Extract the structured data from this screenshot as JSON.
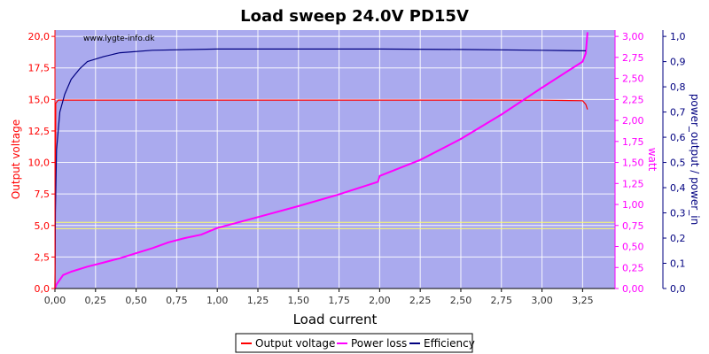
{
  "chart_data": {
    "type": "line",
    "title": "Load sweep 24.0V PD15V",
    "watermark": "www.lygte-info.dk",
    "xlabel": "Load current",
    "ylabel_left": "Output voltage",
    "ylabel_right1": "watt",
    "ylabel_right2": "power_output / power_in",
    "xlim": [
      0,
      3.45
    ],
    "ylim_left": [
      0,
      20.5
    ],
    "ylim_right1": [
      0,
      3.075
    ],
    "ylim_right2": [
      0,
      1.025
    ],
    "grid": true,
    "legend_position": "bottom-center",
    "x_ticks": [
      "0,00",
      "0,25",
      "0,50",
      "0,75",
      "1,00",
      "1,25",
      "1,50",
      "1,75",
      "2,00",
      "2,25",
      "2,50",
      "2,75",
      "3,00",
      "3,25"
    ],
    "x_tick_values": [
      0,
      0.25,
      0.5,
      0.75,
      1.0,
      1.25,
      1.5,
      1.75,
      2.0,
      2.25,
      2.5,
      2.75,
      3.0,
      3.25
    ],
    "y_left_ticks": [
      "0,0",
      "2,5",
      "5,0",
      "7,5",
      "10,0",
      "12,5",
      "15,0",
      "17,5",
      "20,0"
    ],
    "y_left_tick_values": [
      0,
      2.5,
      5,
      7.5,
      10,
      12.5,
      15,
      17.5,
      20
    ],
    "y_right1_ticks": [
      "0,00",
      "0,25",
      "0,50",
      "0,75",
      "1,00",
      "1,25",
      "1,50",
      "1,75",
      "2,00",
      "2,25",
      "2,50",
      "2,75",
      "3,00"
    ],
    "y_right1_tick_values": [
      0,
      0.25,
      0.5,
      0.75,
      1.0,
      1.25,
      1.5,
      1.75,
      2.0,
      2.25,
      2.5,
      2.75,
      3.0
    ],
    "y_right2_ticks": [
      "0,0",
      "0,1",
      "0,2",
      "0,3",
      "0,4",
      "0,5",
      "0,6",
      "0,7",
      "0,8",
      "0,9",
      "1,0"
    ],
    "y_right2_tick_values": [
      0,
      0.1,
      0.2,
      0.3,
      0.4,
      0.5,
      0.6,
      0.7,
      0.8,
      0.9,
      1.0
    ],
    "reference_lines_left": [
      5.25,
      4.75
    ],
    "series": [
      {
        "name": "Output voltage",
        "axis": "left",
        "color": "#ff0000",
        "x": [
          0,
          0.005,
          0.02,
          0.5,
          1.0,
          1.5,
          2.0,
          2.5,
          3.0,
          3.25,
          3.27,
          3.28
        ],
        "y": [
          0,
          14.7,
          14.95,
          14.95,
          14.95,
          14.95,
          14.95,
          14.95,
          14.94,
          14.9,
          14.6,
          14.2
        ]
      },
      {
        "name": "Power loss",
        "axis": "right1",
        "color": "#ff00ff",
        "x": [
          0,
          0.01,
          0.05,
          0.1,
          0.2,
          0.3,
          0.4,
          0.5,
          0.6,
          0.7,
          0.8,
          0.9,
          1.0,
          1.25,
          1.5,
          1.75,
          1.99,
          2.0,
          2.25,
          2.5,
          2.75,
          3.0,
          3.25,
          3.27,
          3.28
        ],
        "y": [
          0,
          0.05,
          0.16,
          0.2,
          0.26,
          0.31,
          0.36,
          0.42,
          0.48,
          0.55,
          0.6,
          0.64,
          0.72,
          0.85,
          0.98,
          1.12,
          1.27,
          1.34,
          1.53,
          1.78,
          2.07,
          2.39,
          2.7,
          2.8,
          3.05
        ]
      },
      {
        "name": "Efficiency",
        "axis": "right2",
        "color": "#000080",
        "x": [
          0,
          0.003,
          0.01,
          0.03,
          0.06,
          0.1,
          0.15,
          0.2,
          0.3,
          0.4,
          0.6,
          1.0,
          1.5,
          2.0,
          2.5,
          3.0,
          3.25,
          3.27
        ],
        "y": [
          0,
          0.3,
          0.55,
          0.7,
          0.77,
          0.83,
          0.87,
          0.9,
          0.92,
          0.935,
          0.945,
          0.95,
          0.95,
          0.95,
          0.948,
          0.945,
          0.943,
          0.943
        ]
      }
    ]
  }
}
